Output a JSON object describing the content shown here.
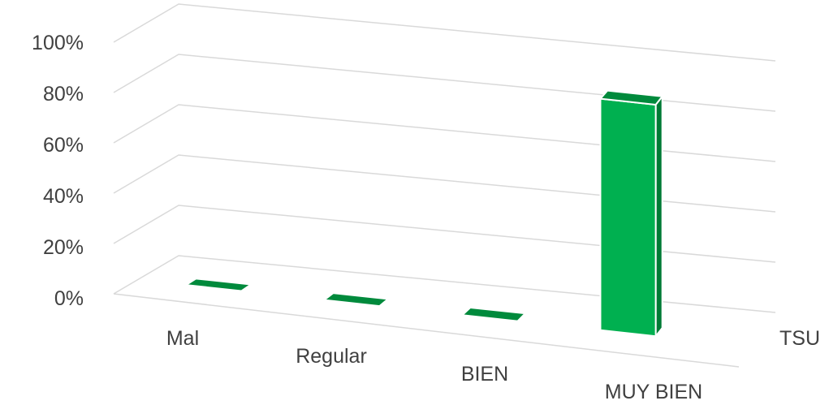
{
  "chart_data": {
    "type": "bar",
    "projection": "3d",
    "categories": [
      "Mal",
      "Regular",
      "BIEN",
      "MUY BIEN"
    ],
    "series": [
      {
        "name": "TSU",
        "values": [
          0,
          0,
          0,
          92
        ]
      }
    ],
    "y_ticks": [
      "0%",
      "20%",
      "40%",
      "60%",
      "80%",
      "100%"
    ],
    "ylim": [
      0,
      100
    ],
    "grid": true,
    "colors": {
      "front": "#00b050",
      "side": "#007a35",
      "top": "#008a3c",
      "grid": "#d9d9d9",
      "text": "#404040"
    }
  }
}
